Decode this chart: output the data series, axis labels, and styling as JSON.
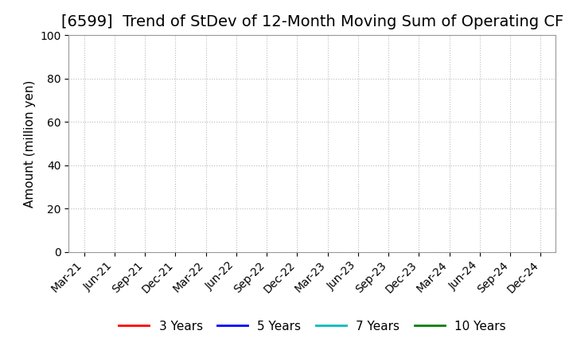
{
  "title": "[6599]  Trend of StDev of 12-Month Moving Sum of Operating CF",
  "ylabel": "Amount (million yen)",
  "ylim": [
    0,
    100
  ],
  "yticks": [
    0,
    20,
    40,
    60,
    80,
    100
  ],
  "x_labels": [
    "Mar-21",
    "Jun-21",
    "Sep-21",
    "Dec-21",
    "Mar-22",
    "Jun-22",
    "Sep-22",
    "Dec-22",
    "Mar-23",
    "Jun-23",
    "Sep-23",
    "Dec-23",
    "Mar-24",
    "Jun-24",
    "Sep-24",
    "Dec-24"
  ],
  "legend_entries": [
    {
      "label": "3 Years",
      "color": "#ff0000"
    },
    {
      "label": "5 Years",
      "color": "#0000ff"
    },
    {
      "label": "7 Years",
      "color": "#00bbbb"
    },
    {
      "label": "10 Years",
      "color": "#008000"
    }
  ],
  "background_color": "#ffffff",
  "grid_color": "#bbbbbb",
  "title_fontsize": 14,
  "axis_label_fontsize": 11,
  "tick_fontsize": 10,
  "legend_fontsize": 11
}
